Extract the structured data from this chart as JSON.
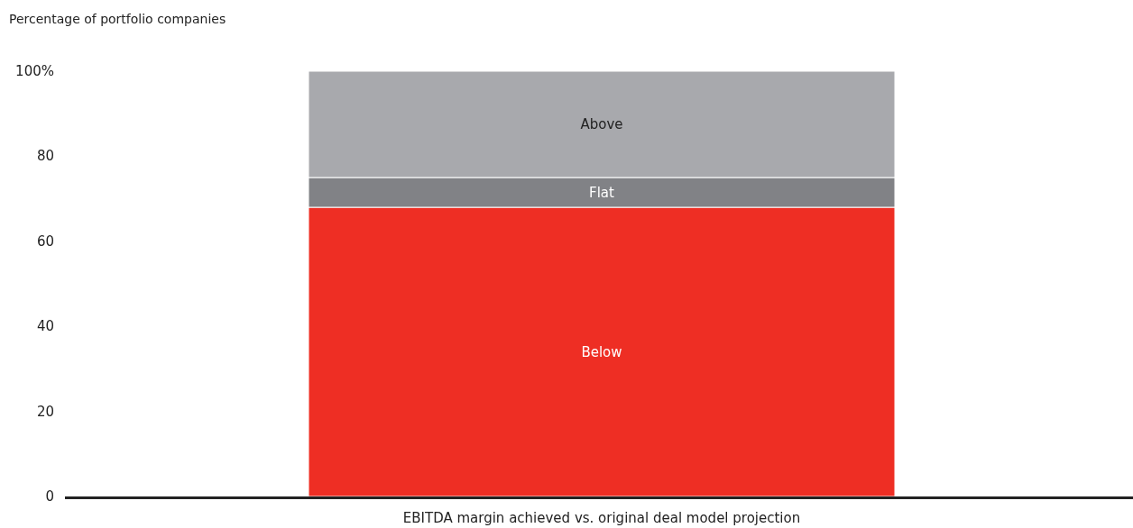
{
  "chart_data": {
    "type": "bar",
    "stacked": true,
    "ylabel": "Percentage of portfolio companies",
    "xlabel": "EBITDA margin achieved vs. original deal model projection",
    "categories": [
      null
    ],
    "series": [
      {
        "name": "Below",
        "color": "#ee2e24",
        "values": [
          68
        ]
      },
      {
        "name": "Flat",
        "color": "#818286",
        "values": [
          7
        ]
      },
      {
        "name": "Above",
        "color": "#a8a9ad",
        "values": [
          25
        ]
      }
    ],
    "ylim": [
      0,
      100
    ],
    "yticks": [
      0,
      20,
      40,
      60,
      80,
      {
        "value": 100,
        "label": "100%"
      }
    ],
    "grid": false
  }
}
